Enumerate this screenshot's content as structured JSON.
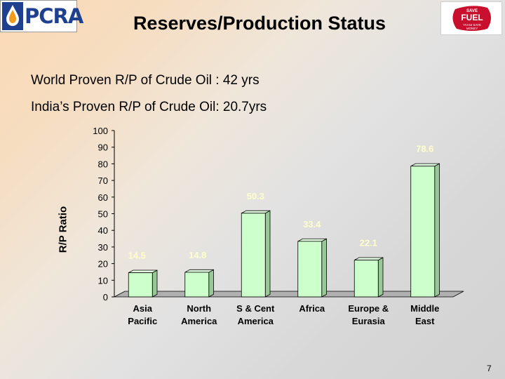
{
  "header": {
    "title": "Reserves/Production Status",
    "logo_left_text": "PCRA",
    "logo_right_text": "SAVE FUEL YAANI SAVE MONEY"
  },
  "subtitle_lines": [
    "World Proven R/P of Crude Oil : 42 yrs",
    "India’s Proven R/P of Crude Oil:  20.7yrs"
  ],
  "chart_data": {
    "type": "bar",
    "categories": [
      [
        "Asia",
        "Pacific"
      ],
      [
        "North",
        "America"
      ],
      [
        "S & Cent",
        "America"
      ],
      [
        "Africa"
      ],
      [
        "Europe &",
        "Eurasia"
      ],
      [
        "Middle",
        "East"
      ]
    ],
    "values": [
      14.5,
      14.8,
      50.3,
      33.4,
      22.1,
      78.6
    ],
    "data_labels": [
      "14.5",
      "14.8",
      "50.3",
      "33.4",
      "22.1",
      "78.6"
    ],
    "ylabel": "R/P Ratio",
    "ylim": [
      0,
      100
    ],
    "yticks": [
      "0",
      "10",
      "20",
      "30",
      "40",
      "50",
      "60",
      "70",
      "80",
      "90",
      "100"
    ],
    "bar_color": "#ccffcc",
    "label_color": "#ffffcc",
    "style": "3d"
  },
  "page_number": "7"
}
